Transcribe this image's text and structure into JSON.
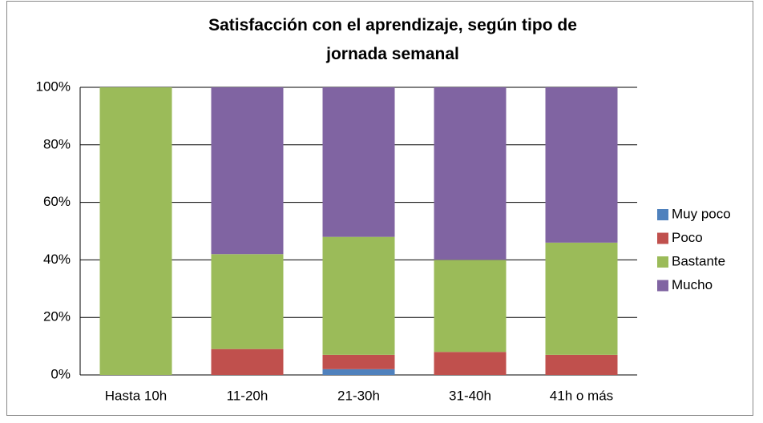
{
  "chart_data": {
    "type": "stacked_bar",
    "title": "Satisfacción con el aprendizaje, según tipo de jornada semanal",
    "categories": [
      "Hasta 10h",
      "11-20h",
      "21-30h",
      "31-40h",
      "41h o más"
    ],
    "series": [
      {
        "name": "Muy poco",
        "color": "#4f81bd",
        "values": [
          0,
          0,
          2,
          0,
          0
        ]
      },
      {
        "name": "Poco",
        "color": "#c0504d",
        "values": [
          0,
          9,
          5,
          8,
          7
        ]
      },
      {
        "name": "Bastante",
        "color": "#9bbb59",
        "values": [
          100,
          33,
          41,
          32,
          39
        ]
      },
      {
        "name": "Mucho",
        "color": "#8064a2",
        "values": [
          0,
          58,
          52,
          60,
          54
        ]
      }
    ],
    "ylim": [
      0,
      100
    ],
    "yticks": [
      {
        "value": 0,
        "label": "0%"
      },
      {
        "value": 20,
        "label": "20%"
      },
      {
        "value": 40,
        "label": "40%"
      },
      {
        "value": 60,
        "label": "60%"
      },
      {
        "value": 80,
        "label": "80%"
      },
      {
        "value": 100,
        "label": "100%"
      }
    ],
    "grid": true,
    "legend": "right"
  }
}
